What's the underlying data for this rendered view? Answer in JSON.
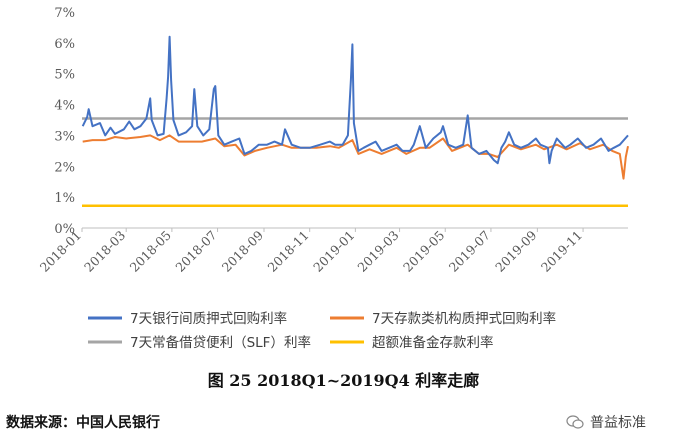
{
  "chart_data": {
    "type": "line",
    "title": "",
    "xlabel": "",
    "ylabel": "",
    "ylim": [
      0,
      7
    ],
    "yticks": [
      "0%",
      "1%",
      "2%",
      "3%",
      "4%",
      "5%",
      "6%",
      "7%"
    ],
    "xticks": [
      "2018-01",
      "2018-03",
      "2018-05",
      "2018-07",
      "2018-09",
      "2018-11",
      "2019-01",
      "2019-03",
      "2019-05",
      "2019-07",
      "2019-09",
      "2019-11"
    ],
    "grid": false,
    "legend_position": "bottom",
    "series": [
      {
        "name": "7天银行间质押式回购利率",
        "color": "#4472C4",
        "points": [
          [
            "2018-01-02",
            3.3
          ],
          [
            "2018-01-08",
            3.6
          ],
          [
            "2018-01-10",
            3.85
          ],
          [
            "2018-01-15",
            3.3
          ],
          [
            "2018-01-25",
            3.4
          ],
          [
            "2018-02-01",
            3.0
          ],
          [
            "2018-02-08",
            3.25
          ],
          [
            "2018-02-14",
            3.05
          ],
          [
            "2018-02-26",
            3.2
          ],
          [
            "2018-03-05",
            3.45
          ],
          [
            "2018-03-12",
            3.2
          ],
          [
            "2018-03-20",
            3.3
          ],
          [
            "2018-03-28",
            3.55
          ],
          [
            "2018-04-02",
            4.2
          ],
          [
            "2018-04-04",
            3.5
          ],
          [
            "2018-04-12",
            3.0
          ],
          [
            "2018-04-20",
            3.05
          ],
          [
            "2018-04-24",
            4.2
          ],
          [
            "2018-04-26",
            4.9
          ],
          [
            "2018-04-28",
            6.2
          ],
          [
            "2018-04-30",
            4.8
          ],
          [
            "2018-05-03",
            3.5
          ],
          [
            "2018-05-10",
            3.0
          ],
          [
            "2018-05-20",
            3.1
          ],
          [
            "2018-05-28",
            3.3
          ],
          [
            "2018-05-31",
            4.5
          ],
          [
            "2018-06-04",
            3.3
          ],
          [
            "2018-06-12",
            3.0
          ],
          [
            "2018-06-20",
            3.2
          ],
          [
            "2018-06-26",
            4.5
          ],
          [
            "2018-06-28",
            4.6
          ],
          [
            "2018-07-02",
            3.0
          ],
          [
            "2018-07-10",
            2.7
          ],
          [
            "2018-07-20",
            2.8
          ],
          [
            "2018-07-30",
            2.9
          ],
          [
            "2018-08-06",
            2.4
          ],
          [
            "2018-08-15",
            2.5
          ],
          [
            "2018-08-25",
            2.7
          ],
          [
            "2018-09-05",
            2.7
          ],
          [
            "2018-09-15",
            2.8
          ],
          [
            "2018-09-25",
            2.7
          ],
          [
            "2018-09-29",
            3.2
          ],
          [
            "2018-10-08",
            2.7
          ],
          [
            "2018-10-20",
            2.6
          ],
          [
            "2018-11-01",
            2.6
          ],
          [
            "2018-11-15",
            2.7
          ],
          [
            "2018-11-28",
            2.8
          ],
          [
            "2018-12-05",
            2.7
          ],
          [
            "2018-12-15",
            2.7
          ],
          [
            "2018-12-22",
            3.0
          ],
          [
            "2018-12-26",
            4.8
          ],
          [
            "2018-12-28",
            5.95
          ],
          [
            "2018-12-30",
            3.4
          ],
          [
            "2019-01-05",
            2.5
          ],
          [
            "2019-01-12",
            2.6
          ],
          [
            "2019-01-20",
            2.7
          ],
          [
            "2019-01-28",
            2.8
          ],
          [
            "2019-02-05",
            2.5
          ],
          [
            "2019-02-15",
            2.6
          ],
          [
            "2019-02-25",
            2.7
          ],
          [
            "2019-03-05",
            2.5
          ],
          [
            "2019-03-15",
            2.5
          ],
          [
            "2019-03-20",
            2.7
          ],
          [
            "2019-03-28",
            3.3
          ],
          [
            "2019-04-05",
            2.6
          ],
          [
            "2019-04-15",
            2.9
          ],
          [
            "2019-04-25",
            3.1
          ],
          [
            "2019-04-28",
            3.3
          ],
          [
            "2019-05-05",
            2.7
          ],
          [
            "2019-05-15",
            2.6
          ],
          [
            "2019-05-25",
            2.7
          ],
          [
            "2019-05-31",
            3.65
          ],
          [
            "2019-06-05",
            2.6
          ],
          [
            "2019-06-15",
            2.4
          ],
          [
            "2019-06-25",
            2.5
          ],
          [
            "2019-07-05",
            2.2
          ],
          [
            "2019-07-10",
            2.1
          ],
          [
            "2019-07-15",
            2.6
          ],
          [
            "2019-07-20",
            2.8
          ],
          [
            "2019-07-25",
            3.1
          ],
          [
            "2019-08-01",
            2.7
          ],
          [
            "2019-08-10",
            2.6
          ],
          [
            "2019-08-20",
            2.7
          ],
          [
            "2019-08-30",
            2.9
          ],
          [
            "2019-09-05",
            2.7
          ],
          [
            "2019-09-15",
            2.6
          ],
          [
            "2019-09-17",
            2.1
          ],
          [
            "2019-09-20",
            2.5
          ],
          [
            "2019-09-27",
            2.9
          ],
          [
            "2019-10-08",
            2.6
          ],
          [
            "2019-10-15",
            2.7
          ],
          [
            "2019-10-25",
            2.9
          ],
          [
            "2019-11-05",
            2.6
          ],
          [
            "2019-11-15",
            2.7
          ],
          [
            "2019-11-25",
            2.9
          ],
          [
            "2019-12-05",
            2.5
          ],
          [
            "2019-12-12",
            2.6
          ],
          [
            "2019-12-20",
            2.7
          ],
          [
            "2019-12-31",
            3.0
          ]
        ]
      },
      {
        "name": "7天存款类机构质押式回购利率",
        "color": "#ED7D31",
        "points": [
          [
            "2018-01-02",
            2.8
          ],
          [
            "2018-01-15",
            2.85
          ],
          [
            "2018-02-01",
            2.85
          ],
          [
            "2018-02-14",
            2.95
          ],
          [
            "2018-03-01",
            2.9
          ],
          [
            "2018-03-20",
            2.95
          ],
          [
            "2018-04-02",
            3.0
          ],
          [
            "2018-04-15",
            2.85
          ],
          [
            "2018-04-28",
            3.0
          ],
          [
            "2018-05-10",
            2.8
          ],
          [
            "2018-05-25",
            2.8
          ],
          [
            "2018-06-10",
            2.8
          ],
          [
            "2018-06-28",
            2.9
          ],
          [
            "2018-07-10",
            2.65
          ],
          [
            "2018-07-25",
            2.7
          ],
          [
            "2018-08-06",
            2.35
          ],
          [
            "2018-08-20",
            2.5
          ],
          [
            "2018-09-05",
            2.6
          ],
          [
            "2018-09-25",
            2.7
          ],
          [
            "2018-10-08",
            2.6
          ],
          [
            "2018-10-25",
            2.6
          ],
          [
            "2018-11-10",
            2.6
          ],
          [
            "2018-11-28",
            2.65
          ],
          [
            "2018-12-10",
            2.6
          ],
          [
            "2018-12-28",
            2.85
          ],
          [
            "2019-01-05",
            2.4
          ],
          [
            "2019-01-20",
            2.55
          ],
          [
            "2019-02-05",
            2.4
          ],
          [
            "2019-02-25",
            2.6
          ],
          [
            "2019-03-10",
            2.4
          ],
          [
            "2019-03-28",
            2.6
          ],
          [
            "2019-04-10",
            2.6
          ],
          [
            "2019-04-28",
            2.9
          ],
          [
            "2019-05-10",
            2.5
          ],
          [
            "2019-05-31",
            2.7
          ],
          [
            "2019-06-15",
            2.4
          ],
          [
            "2019-06-28",
            2.4
          ],
          [
            "2019-07-10",
            2.3
          ],
          [
            "2019-07-25",
            2.7
          ],
          [
            "2019-08-10",
            2.55
          ],
          [
            "2019-08-30",
            2.7
          ],
          [
            "2019-09-10",
            2.55
          ],
          [
            "2019-09-27",
            2.7
          ],
          [
            "2019-10-10",
            2.55
          ],
          [
            "2019-10-28",
            2.75
          ],
          [
            "2019-11-10",
            2.55
          ],
          [
            "2019-11-28",
            2.7
          ],
          [
            "2019-12-10",
            2.5
          ],
          [
            "2019-12-20",
            2.4
          ],
          [
            "2019-12-25",
            1.6
          ],
          [
            "2019-12-28",
            2.3
          ],
          [
            "2019-12-31",
            2.65
          ]
        ]
      },
      {
        "name": "7天常备借贷便利（SLF）利率",
        "color": "#A5A5A5",
        "points": [
          [
            "2018-01-01",
            3.55
          ],
          [
            "2019-12-31",
            3.55
          ]
        ]
      },
      {
        "name": "超额准备金存款利率",
        "color": "#FFC000",
        "points": [
          [
            "2018-01-01",
            0.72
          ],
          [
            "2019-12-31",
            0.72
          ]
        ]
      }
    ],
    "caption": "图  25    2018Q1~2019Q4 利率走廊"
  },
  "source_label": "数据来源：中国人民银行",
  "watermark_text": "普益标准"
}
